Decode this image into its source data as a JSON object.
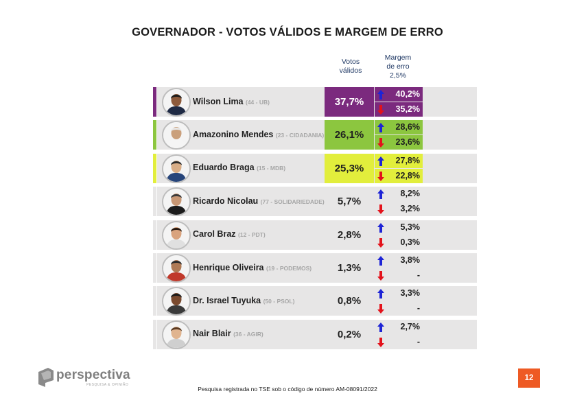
{
  "title": "GOVERNADOR - VOTOS VÁLIDOS E MARGEM DE ERRO",
  "headers": {
    "votes_line1": "Votos",
    "votes_line2": "válidos",
    "margin_line1": "Margem",
    "margin_line2": "de erro",
    "margin_line3": "2,5%"
  },
  "chart_data": {
    "type": "table",
    "columns": [
      "",
      "Votos válidos",
      "Margem de erro 2,5%"
    ],
    "rows": [
      {
        "name": "Wilson Lima",
        "party": "(44 - UB)",
        "votes": "37,7%",
        "upper": "40,2%",
        "lower": "35,2%",
        "color": "#7b2a7e"
      },
      {
        "name": "Amazonino Mendes",
        "party": "(23 - CIDADANIA)",
        "votes": "26,1%",
        "upper": "28,6%",
        "lower": "23,6%",
        "color": "#8cc63f"
      },
      {
        "name": "Eduardo Braga",
        "party": "(15 - MDB)",
        "votes": "25,3%",
        "upper": "27,8%",
        "lower": "22,8%",
        "color": "#e2ee3c"
      },
      {
        "name": "Ricardo Nicolau",
        "party": "(77 - SOLIDARIEDADE)",
        "votes": "5,7%",
        "upper": "8,2%",
        "lower": "3,2%",
        "color": "#e7e6e6"
      },
      {
        "name": "Carol Braz",
        "party": "(12 - PDT)",
        "votes": "2,8%",
        "upper": "5,3%",
        "lower": "0,3%",
        "color": "#e7e6e6"
      },
      {
        "name": "Henrique Oliveira",
        "party": "(19 - PODEMOS)",
        "votes": "1,3%",
        "upper": "3,8%",
        "lower": "-",
        "color": "#e7e6e6"
      },
      {
        "name": "Dr. Israel Tuyuka",
        "party": "(50 - PSOL)",
        "votes": "0,8%",
        "upper": "3,3%",
        "lower": "-",
        "color": "#e7e6e6"
      },
      {
        "name": "Nair Blair",
        "party": "(36 - AGIR)",
        "votes": "0,2%",
        "upper": "2,7%",
        "lower": "-",
        "color": "#e7e6e6"
      }
    ]
  },
  "logo": {
    "word": "perspectiva",
    "sub": "PESQUISA & OPINIÃO"
  },
  "footnote": "Pesquisa registrada no TSE sob o código de número AM-08091/2022",
  "page_number": "12",
  "icons": {
    "up": "arrow-up-icon",
    "down": "arrow-down-icon",
    "avatar": "person-avatar-icon"
  },
  "colors": {
    "arrow_up": "#1e24d6",
    "arrow_down": "#e3121b",
    "cell_gray": "#e7e6e6",
    "page_badge": "#ee5a24"
  }
}
